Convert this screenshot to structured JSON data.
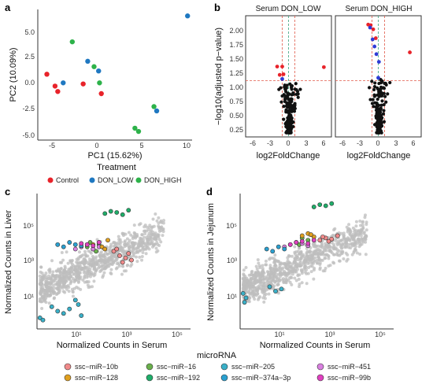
{
  "colors": {
    "Control": "#e8232a",
    "DON_LOW": "#1f78c1",
    "DON_HIGH": "#2db24a",
    "sig": "#e8232a",
    "down": "#2f3bd6",
    "ns": "#111111",
    "grey": "#bdbdbd",
    "thresh": "#e05a4a",
    "zero": "#3aa37c"
  },
  "panels": {
    "a": {
      "label": "a",
      "xlabel": "PC1 (15.62%)",
      "ylabel": "PC2 (10.09%)",
      "legend_title": "Treatment",
      "groups": [
        "Control",
        "DON_LOW",
        "DON_HIGH"
      ],
      "xticks": [
        "-5",
        "0",
        "5",
        "10"
      ],
      "yticks": [
        "5.0",
        "2.5",
        "0.0",
        "-2.5",
        "-5.0"
      ]
    },
    "b": {
      "label": "b",
      "facets": [
        "Serum DON_LOW",
        "Serum DON_HIGH"
      ],
      "xlabel": "log2FoldChange",
      "ylabel": "−log10(adjusted p−value)",
      "xticks": [
        "-6",
        "-3",
        "0",
        "3",
        "6"
      ],
      "yticks": [
        "2.00",
        "1.75",
        "1.50",
        "1.25",
        "1.00",
        "0.75",
        "0.50",
        "0.25"
      ]
    },
    "c": {
      "label": "c",
      "xlabel": "Normalized Counts in Serum",
      "ylabel": "Normalized Counts in Liver",
      "xticks": [
        "10¹",
        "10³",
        "10⁵"
      ],
      "yticks": [
        "10⁵",
        "10³",
        "10¹"
      ]
    },
    "d": {
      "label": "d",
      "xlabel": "Normalized Counts in Serum",
      "ylabel": "Normalized Counts in Jejunum",
      "xticks": [
        "10¹",
        "10³",
        "10⁵"
      ],
      "yticks": [
        "10⁵",
        "10³",
        "10¹"
      ]
    }
  },
  "legend_mirna": {
    "title": "microRNA",
    "items": [
      {
        "name": "ssc−miR−10b",
        "color": "#f08a8a"
      },
      {
        "name": "ssc−miR−16",
        "color": "#6ab04c"
      },
      {
        "name": "ssc−miR−205",
        "color": "#3ab0c8"
      },
      {
        "name": "ssc−miR−451",
        "color": "#d980e0"
      },
      {
        "name": "ssc−miR−128",
        "color": "#e0a020"
      },
      {
        "name": "ssc−miR−192",
        "color": "#1fae6a"
      },
      {
        "name": "ssc−miR−374a−3p",
        "color": "#2aa0d0"
      },
      {
        "name": "ssc−miR−99b",
        "color": "#e040c0"
      }
    ]
  },
  "chart_data": [
    {
      "type": "scatter",
      "panel": "a",
      "xlabel": "PC1 (15.62%)",
      "ylabel": "PC2 (10.09%)",
      "xlim": [
        -6.5,
        10.5
      ],
      "ylim": [
        -5.3,
        6.8
      ],
      "series": [
        {
          "name": "Control",
          "x": [
            -5.5,
            -4.6,
            -4.3,
            -1.5,
            0.5
          ],
          "y": [
            0.8,
            -0.3,
            -0.8,
            -0.1,
            -1.0
          ]
        },
        {
          "name": "DON_LOW",
          "x": [
            -3.7,
            -1.0,
            0.2,
            6.6,
            10.0
          ],
          "y": [
            0.0,
            2.0,
            1.1,
            -2.6,
            6.2
          ]
        },
        {
          "name": "DON_HIGH",
          "x": [
            -2.7,
            -0.3,
            0.3,
            6.3,
            4.2,
            4.6
          ],
          "y": [
            3.8,
            1.5,
            0.0,
            -2.2,
            -4.2,
            -4.5
          ]
        }
      ]
    },
    {
      "type": "scatter",
      "panel": "b-low",
      "title": "Serum DON_LOW",
      "xlabel": "log2FoldChange",
      "ylabel": "−log10(adjusted p−value)",
      "xlim": [
        -6.8,
        6.8
      ],
      "ylim": [
        0.05,
        2.1
      ],
      "series": [
        {
          "name": "sig",
          "x": [
            -1.8,
            -1.0,
            -0.8,
            -1.4,
            5.6
          ],
          "y": [
            1.24,
            1.24,
            1.11,
            1.1,
            1.23
          ]
        },
        {
          "name": "down",
          "x": [
            -1.0
          ],
          "y": [
            1.03
          ]
        }
      ]
    },
    {
      "type": "scatter",
      "panel": "b-high",
      "title": "Serum DON_HIGH",
      "xlabel": "log2FoldChange",
      "ylabel": "−log10(adjusted p−value)",
      "xlim": [
        -6.8,
        6.8
      ],
      "ylim": [
        0.05,
        2.1
      ],
      "series": [
        {
          "name": "sig",
          "x": [
            -1.6,
            -1.2,
            -0.8,
            -0.4,
            5.0
          ],
          "y": [
            1.95,
            1.94,
            1.87,
            1.72,
            1.48
          ]
        },
        {
          "name": "down",
          "x": [
            -1.3,
            -0.9,
            -0.6,
            -0.3,
            0.1,
            0.0
          ],
          "y": [
            1.9,
            1.7,
            1.58,
            1.45,
            1.32,
            1.05
          ]
        }
      ]
    },
    {
      "type": "scatter",
      "panel": "c",
      "xlabel": "Normalized Counts in Serum",
      "ylabel": "Normalized Counts in Liver",
      "x_scale": "log10",
      "y_scale": "log10",
      "xlim": [
        0.5,
        5.7
      ],
      "ylim": [
        -0.3,
        5.8
      ],
      "series": [
        {
          "name": "ssc−miR−10b",
          "x": [
            3.1,
            3.3,
            3.5,
            3.6,
            3.7,
            3.4,
            3.2
          ],
          "y": [
            3.2,
            3.0,
            2.9,
            3.1,
            2.8,
            2.7,
            3.3
          ]
        },
        {
          "name": "ssc−miR−16",
          "x": [
            2.2,
            2.4,
            2.6,
            2.5,
            2.3
          ],
          "y": [
            3.4,
            3.3,
            3.5,
            3.2,
            3.6
          ]
        },
        {
          "name": "ssc−miR−205",
          "x": [
            1.0,
            1.2,
            1.4,
            1.6,
            1.8,
            2.0,
            0.6,
            0.7,
            1.9
          ],
          "y": [
            0.7,
            0.5,
            0.4,
            0.6,
            1.0,
            0.3,
            0.2,
            0.1,
            0.8
          ]
        },
        {
          "name": "ssc−miR−451",
          "x": [
            1.8,
            2.0,
            2.2,
            2.4,
            2.6
          ],
          "y": [
            3.3,
            3.4,
            3.5,
            3.3,
            3.4
          ]
        },
        {
          "name": "ssc−miR−128",
          "x": [
            2.4,
            2.6,
            2.7,
            2.8,
            2.9
          ],
          "y": [
            3.5,
            3.6,
            3.4,
            3.3,
            3.7
          ]
        },
        {
          "name": "ssc−miR−192",
          "x": [
            2.8,
            3.0,
            3.2,
            3.4,
            3.6
          ],
          "y": [
            4.9,
            5.0,
            4.95,
            4.85,
            5.05
          ]
        },
        {
          "name": "ssc−miR−374a−3p",
          "x": [
            1.2,
            1.4,
            1.6,
            1.8,
            2.0
          ],
          "y": [
            3.5,
            3.4,
            3.6,
            3.5,
            3.45
          ]
        },
        {
          "name": "ssc−miR−99b",
          "x": [
            2.0,
            2.2,
            2.4,
            2.6
          ],
          "y": [
            3.55,
            3.5,
            3.45,
            3.6
          ]
        }
      ]
    },
    {
      "type": "scatter",
      "panel": "d",
      "xlabel": "Normalized Counts in Serum",
      "ylabel": "Normalized Counts in Jejunum",
      "x_scale": "log10",
      "y_scale": "log10",
      "xlim": [
        0.5,
        5.7
      ],
      "ylim": [
        -0.3,
        5.8
      ],
      "series": [
        {
          "name": "ssc−miR−10b",
          "x": [
            3.2,
            3.4,
            3.6,
            3.8,
            3.5,
            3.3
          ],
          "y": [
            3.7,
            3.8,
            3.75,
            3.9,
            3.65,
            3.85
          ]
        },
        {
          "name": "ssc−miR−16",
          "x": [
            2.4,
            2.6,
            2.8,
            2.5
          ],
          "y": [
            3.6,
            3.8,
            3.7,
            3.5
          ]
        },
        {
          "name": "ssc−miR−205",
          "x": [
            0.6,
            0.7,
            1.5,
            1.7,
            1.9,
            0.65
          ],
          "y": [
            1.3,
            1.1,
            1.6,
            1.4,
            1.5,
            0.9
          ]
        },
        {
          "name": "ssc−miR−451",
          "x": [
            2.0,
            2.2,
            2.4,
            2.6,
            2.8
          ],
          "y": [
            3.4,
            3.5,
            3.6,
            3.55,
            3.45
          ]
        },
        {
          "name": "ssc−miR−128",
          "x": [
            2.6,
            2.8,
            3.0,
            2.9
          ],
          "y": [
            3.9,
            4.0,
            3.85,
            3.95
          ]
        },
        {
          "name": "ssc−miR−192",
          "x": [
            3.0,
            3.2,
            3.4,
            3.6
          ],
          "y": [
            5.2,
            5.3,
            5.25,
            5.35
          ]
        },
        {
          "name": "ssc−miR−374a−3p",
          "x": [
            1.4,
            1.6,
            1.8,
            2.0
          ],
          "y": [
            3.3,
            3.2,
            3.4,
            3.3
          ]
        },
        {
          "name": "ssc−miR−99b",
          "x": [
            2.2,
            2.4,
            2.6,
            2.8,
            3.0
          ],
          "y": [
            3.5,
            3.6,
            3.65,
            3.55,
            3.7
          ]
        }
      ]
    }
  ]
}
